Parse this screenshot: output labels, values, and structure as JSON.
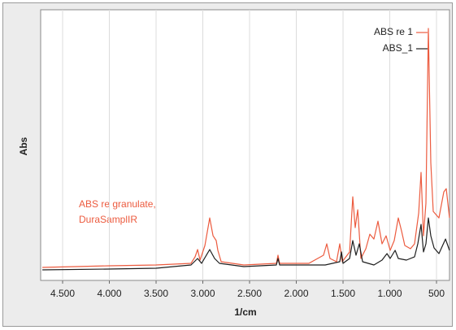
{
  "chart_data": {
    "type": "line",
    "xlabel": "1/cm",
    "ylabel": "Abs",
    "annotations": [
      "ABS re granulate,",
      "DuraSamplIR"
    ],
    "xlim": [
      4735,
      361
    ],
    "ylim": [
      0,
      1
    ],
    "xticks": [
      {
        "value": 4500,
        "label": "4.500"
      },
      {
        "value": 4000,
        "label": "4.000"
      },
      {
        "value": 3500,
        "label": "3.500"
      },
      {
        "value": 3000,
        "label": "3.000"
      },
      {
        "value": 2500,
        "label": "2.500"
      },
      {
        "value": 2000,
        "label": "2.000"
      },
      {
        "value": 1500,
        "label": "1.500"
      },
      {
        "value": 1000,
        "label": "1.000"
      },
      500
    ],
    "grid": true,
    "legend": "top-right",
    "series": [
      {
        "name": "ABS re 1",
        "color": "#ec5b3f",
        "x": [
          4717,
          4000,
          3500,
          3126,
          3083,
          3056,
          3030,
          2978,
          2926,
          2891,
          2857,
          2839,
          2804,
          2561,
          2213,
          2196,
          2178,
          1865,
          1709,
          1674,
          1639,
          1570,
          1535,
          1509,
          1430,
          1396,
          1370,
          1343,
          1309,
          1256,
          1213,
          1170,
          1126,
          1083,
          1039,
          996,
          952,
          909,
          874,
          839,
          778,
          735,
          691,
          665,
          639,
          613,
          587,
          561,
          535,
          474,
          422,
          396,
          361
        ],
        "values": [
          0.048,
          0.054,
          0.057,
          0.063,
          0.087,
          0.114,
          0.075,
          0.129,
          0.231,
          0.165,
          0.147,
          0.111,
          0.069,
          0.057,
          0.063,
          0.093,
          0.063,
          0.063,
          0.093,
          0.135,
          0.081,
          0.069,
          0.135,
          0.069,
          0.105,
          0.309,
          0.195,
          0.261,
          0.081,
          0.117,
          0.171,
          0.153,
          0.219,
          0.135,
          0.165,
          0.111,
          0.147,
          0.231,
          0.183,
          0.129,
          0.117,
          0.135,
          0.249,
          0.399,
          0.165,
          0.285,
          0.931,
          0.435,
          0.255,
          0.231,
          0.327,
          0.339,
          0.231
        ]
      },
      {
        "name": "ABS_1",
        "color": "#1e1e1e",
        "x": [
          4717,
          4000,
          3500,
          3126,
          3056,
          3013,
          2926,
          2874,
          2822,
          2561,
          2213,
          2196,
          2178,
          1691,
          1535,
          1517,
          1500,
          1430,
          1396,
          1361,
          1326,
          1291,
          1170,
          1083,
          1030,
          996,
          943,
          909,
          822,
          735,
          700,
          665,
          639,
          613,
          587,
          561,
          526,
          474,
          404,
          361
        ],
        "values": [
          0.039,
          0.042,
          0.045,
          0.057,
          0.081,
          0.063,
          0.114,
          0.081,
          0.063,
          0.051,
          0.057,
          0.081,
          0.057,
          0.057,
          0.069,
          0.105,
          0.063,
          0.081,
          0.147,
          0.093,
          0.135,
          0.069,
          0.057,
          0.075,
          0.099,
          0.081,
          0.111,
          0.081,
          0.075,
          0.087,
          0.135,
          0.207,
          0.105,
          0.135,
          0.231,
          0.165,
          0.12,
          0.099,
          0.153,
          0.111
        ]
      }
    ]
  }
}
